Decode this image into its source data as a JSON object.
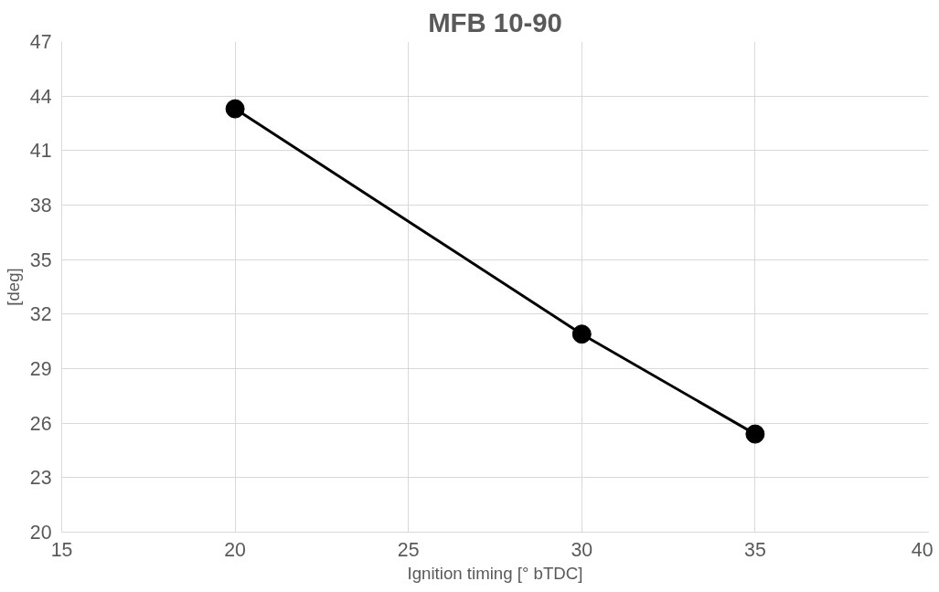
{
  "chart_data": {
    "type": "line",
    "title": "MFB 10-90",
    "xlabel": "Ignition timing [° bTDC]",
    "ylabel": "[deg]",
    "x": [
      20,
      30,
      35
    ],
    "series": [
      {
        "color": "#000000",
        "values": [
          43.3,
          30.9,
          25.4
        ]
      }
    ],
    "xlim": [
      15,
      40
    ],
    "xticks": [
      15,
      20,
      25,
      30,
      35,
      40
    ],
    "ylim": [
      20,
      47
    ],
    "yticks": [
      20,
      23,
      26,
      29,
      32,
      35,
      38,
      41,
      44,
      47
    ],
    "grid": true,
    "marker": "circle",
    "line_style": "solid"
  }
}
